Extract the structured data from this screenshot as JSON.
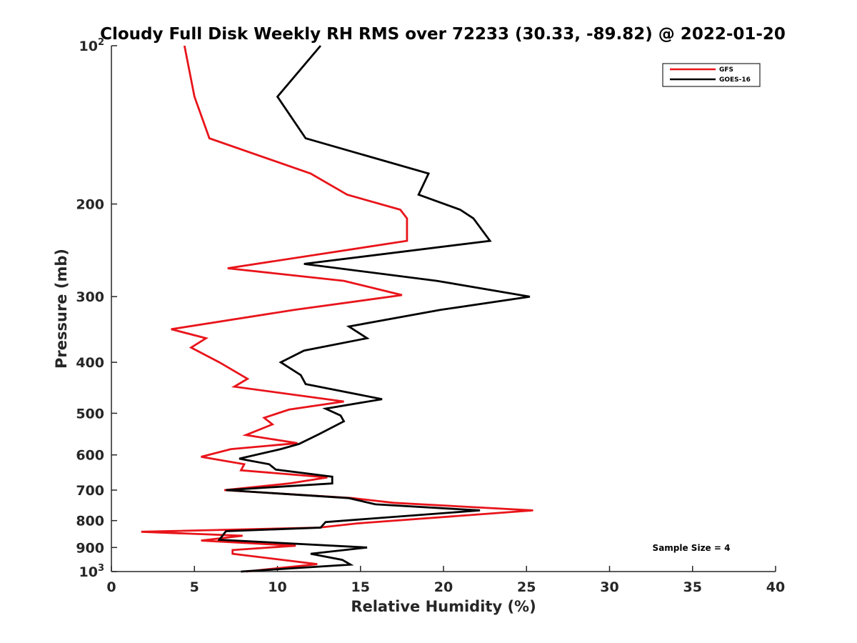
{
  "chart_data": {
    "type": "line",
    "title": "Cloudy Full Disk Weekly RH RMS over 72233 (30.33, -89.82) @ 2022-01-20",
    "xlabel": "Relative Humidity (%)",
    "ylabel": "Pressure (mb)",
    "xlim": [
      0,
      40
    ],
    "ylim": [
      100,
      1000
    ],
    "yscale": "log",
    "y_reversed": true,
    "xticks": [
      "0",
      "5",
      "10",
      "15",
      "20",
      "25",
      "30",
      "35",
      "40"
    ],
    "yticks": [
      {
        "value": 100,
        "base": "10",
        "exp": "2"
      },
      {
        "value": 200,
        "label": "200"
      },
      {
        "value": 300,
        "label": "300"
      },
      {
        "value": 400,
        "label": "400"
      },
      {
        "value": 500,
        "label": "500"
      },
      {
        "value": 600,
        "label": "600"
      },
      {
        "value": 700,
        "label": "700"
      },
      {
        "value": 800,
        "label": "800"
      },
      {
        "value": 900,
        "label": "900"
      },
      {
        "value": 1000,
        "base": "10",
        "exp": "3"
      }
    ],
    "legend_position": "top-right",
    "annotation": "Sample Size = 4",
    "series": [
      {
        "name": "GFS",
        "color": "#e8141a",
        "points": [
          [
            4.4,
            100
          ],
          [
            5.0,
            125
          ],
          [
            5.9,
            150
          ],
          [
            12.0,
            175
          ],
          [
            14.2,
            192
          ],
          [
            17.4,
            205
          ],
          [
            17.8,
            213
          ],
          [
            17.8,
            235
          ],
          [
            7.0,
            265
          ],
          [
            14.0,
            280
          ],
          [
            17.5,
            298
          ],
          [
            11.0,
            318
          ],
          [
            3.6,
            346
          ],
          [
            5.7,
            360
          ],
          [
            4.8,
            375
          ],
          [
            6.5,
            400
          ],
          [
            8.2,
            430
          ],
          [
            7.4,
            445
          ],
          [
            14.0,
            475
          ],
          [
            10.7,
            492
          ],
          [
            9.2,
            510
          ],
          [
            9.7,
            525
          ],
          [
            8.1,
            550
          ],
          [
            11.2,
            570
          ],
          [
            7.2,
            585
          ],
          [
            5.4,
            605
          ],
          [
            8.0,
            625
          ],
          [
            7.8,
            642
          ],
          [
            13.0,
            662
          ],
          [
            10.7,
            680
          ],
          [
            6.8,
            700
          ],
          [
            14.5,
            725
          ],
          [
            17.0,
            740
          ],
          [
            25.4,
            765
          ],
          [
            14.8,
            810
          ],
          [
            12.5,
            825
          ],
          [
            1.8,
            840
          ],
          [
            7.9,
            855
          ],
          [
            5.4,
            873
          ],
          [
            11.1,
            893
          ],
          [
            7.3,
            910
          ],
          [
            7.3,
            925
          ],
          [
            12.4,
            968
          ],
          [
            8.1,
            1000
          ]
        ]
      },
      {
        "name": "GOES-16",
        "color": "#000000",
        "points": [
          [
            12.6,
            100
          ],
          [
            10.0,
            125
          ],
          [
            11.7,
            150
          ],
          [
            19.1,
            175
          ],
          [
            18.5,
            192
          ],
          [
            21.0,
            205
          ],
          [
            21.8,
            213
          ],
          [
            22.8,
            235
          ],
          [
            11.6,
            260
          ],
          [
            19.6,
            280
          ],
          [
            25.2,
            300
          ],
          [
            19.8,
            318
          ],
          [
            14.3,
            342
          ],
          [
            15.4,
            360
          ],
          [
            11.6,
            380
          ],
          [
            10.2,
            400
          ],
          [
            11.4,
            423
          ],
          [
            11.7,
            440
          ],
          [
            16.3,
            470
          ],
          [
            12.9,
            490
          ],
          [
            13.8,
            505
          ],
          [
            14.0,
            518
          ],
          [
            12.5,
            548
          ],
          [
            11.3,
            572
          ],
          [
            10.2,
            585
          ],
          [
            7.7,
            610
          ],
          [
            9.5,
            625
          ],
          [
            9.9,
            640
          ],
          [
            13.3,
            660
          ],
          [
            13.3,
            680
          ],
          [
            6.9,
            700
          ],
          [
            14.3,
            725
          ],
          [
            15.9,
            745
          ],
          [
            22.2,
            765
          ],
          [
            12.9,
            805
          ],
          [
            12.6,
            825
          ],
          [
            6.9,
            838
          ],
          [
            6.5,
            870
          ],
          [
            15.4,
            900
          ],
          [
            12.0,
            925
          ],
          [
            13.9,
            950
          ],
          [
            14.4,
            970
          ],
          [
            7.8,
            1000
          ]
        ]
      }
    ]
  }
}
